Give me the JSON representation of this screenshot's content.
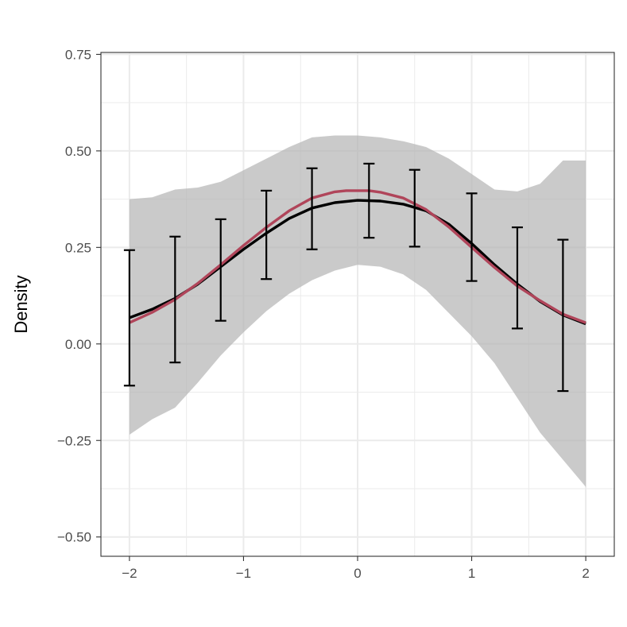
{
  "chart_data": {
    "type": "line",
    "title": "",
    "xlabel": "",
    "ylabel": "Density",
    "xlim": [
      -2.25,
      2.25
    ],
    "ylim": [
      -0.55,
      0.755
    ],
    "x_ticks": [
      -2,
      -1,
      0,
      1,
      2
    ],
    "x_tick_labels": [
      "−2",
      "−1",
      "0",
      "1",
      "2"
    ],
    "y_ticks": [
      -0.5,
      -0.25,
      0,
      0.25,
      0.5,
      0.75
    ],
    "y_tick_labels": [
      "−0.50",
      "−0.25",
      "0.00",
      "0.25",
      "0.50",
      "0.75"
    ],
    "grid": true,
    "legend": "none",
    "colors": {
      "ribbon": "#b3b3b3",
      "estimate": "#000000",
      "reference": "#b0455a",
      "error_bars": "#000000",
      "grid": "#ebebeb",
      "panel_border": "#333333"
    },
    "ribbon": {
      "x": [
        -2,
        -1.8,
        -1.6,
        -1.4,
        -1.2,
        -1.0,
        -0.8,
        -0.6,
        -0.4,
        -0.2,
        0,
        0.2,
        0.4,
        0.6,
        0.8,
        1.0,
        1.2,
        1.4,
        1.6,
        1.8,
        2.0
      ],
      "lower": [
        -0.235,
        -0.195,
        -0.165,
        -0.1,
        -0.03,
        0.03,
        0.085,
        0.13,
        0.165,
        0.19,
        0.205,
        0.2,
        0.18,
        0.14,
        0.08,
        0.02,
        -0.05,
        -0.14,
        -0.23,
        -0.3,
        -0.37
      ],
      "upper": [
        0.375,
        0.38,
        0.4,
        0.405,
        0.42,
        0.45,
        0.48,
        0.51,
        0.535,
        0.54,
        0.54,
        0.535,
        0.525,
        0.51,
        0.48,
        0.44,
        0.4,
        0.395,
        0.415,
        0.475,
        0.475
      ]
    },
    "series": [
      {
        "x": [
          -2,
          -1.8,
          -1.6,
          -1.4,
          -1.2,
          -1.0,
          -0.8,
          -0.6,
          -0.4,
          -0.2,
          0,
          0.2,
          0.4,
          0.6,
          0.8,
          1.0,
          1.2,
          1.4,
          1.6,
          1.8,
          2.0
        ],
        "values": [
          0.068,
          0.09,
          0.118,
          0.155,
          0.2,
          0.245,
          0.287,
          0.325,
          0.352,
          0.366,
          0.372,
          0.37,
          0.362,
          0.345,
          0.31,
          0.26,
          0.205,
          0.155,
          0.11,
          0.075,
          0.052
        ]
      },
      {
        "x": [
          -2,
          -1.8,
          -1.6,
          -1.4,
          -1.2,
          -1.0,
          -0.8,
          -0.6,
          -0.4,
          -0.2,
          -0.1,
          0,
          0.1,
          0.2,
          0.4,
          0.6,
          0.8,
          1.0,
          1.2,
          1.4,
          1.6,
          1.8,
          2.0
        ],
        "values": [
          0.055,
          0.082,
          0.115,
          0.157,
          0.205,
          0.255,
          0.302,
          0.345,
          0.378,
          0.394,
          0.397,
          0.397,
          0.397,
          0.393,
          0.378,
          0.348,
          0.303,
          0.25,
          0.198,
          0.15,
          0.112,
          0.077,
          0.055
        ]
      }
    ],
    "error_bars": [
      {
        "x": -2.0,
        "low": -0.108,
        "high": 0.243
      },
      {
        "x": -1.6,
        "low": -0.048,
        "high": 0.278
      },
      {
        "x": -1.2,
        "low": 0.06,
        "high": 0.323
      },
      {
        "x": -0.8,
        "low": 0.168,
        "high": 0.397
      },
      {
        "x": -0.4,
        "low": 0.245,
        "high": 0.455
      },
      {
        "x": 0.1,
        "low": 0.275,
        "high": 0.467
      },
      {
        "x": 0.5,
        "low": 0.252,
        "high": 0.451
      },
      {
        "x": 1.0,
        "low": 0.163,
        "high": 0.39
      },
      {
        "x": 1.4,
        "low": 0.04,
        "high": 0.302
      },
      {
        "x": 1.8,
        "low": -0.122,
        "high": 0.27
      }
    ]
  }
}
